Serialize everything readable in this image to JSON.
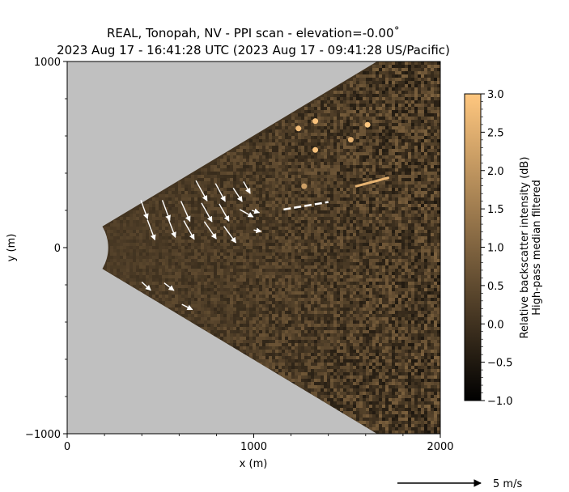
{
  "chart_data": {
    "type": "heatmap",
    "title_line1": "REAL, Tonopah, NV - PPI scan - elevation=-0.00˚",
    "title_line2": "2023 Aug 17 - 16:41:28 UTC (2023 Aug 17 - 09:41:28 US/Pacific)",
    "xlabel": "x (m)",
    "ylabel": "y (m)",
    "xlim": [
      0,
      2000
    ],
    "ylim": [
      -1000,
      1000
    ],
    "x_ticks": [
      0,
      1000,
      2000
    ],
    "y_ticks": [
      -1000,
      0,
      1000
    ],
    "x_tick_labels": [
      "0",
      "1000",
      "2000"
    ],
    "y_tick_labels": [
      "−1000",
      "0",
      "1000"
    ],
    "background_color": "#c0c0c0",
    "scan_sector": {
      "range_min": 220,
      "range_max": 2300,
      "azimuth_half_width_deg": 31
    },
    "colorbar": {
      "label_line1": "Relative backscatter intensity (dB)",
      "label_line2": "High-pass median filtered",
      "vmin": -1.0,
      "vmax": 3.0,
      "ticks": [
        -1.0,
        -0.5,
        0.0,
        0.5,
        1.0,
        1.5,
        2.0,
        2.5,
        3.0
      ],
      "tick_labels": [
        "−1.0",
        "−0.5",
        "0.0",
        "0.5",
        "1.0",
        "1.5",
        "2.0",
        "2.5",
        "3.0"
      ],
      "colormap": "copper",
      "colors": [
        "#000000",
        "#ffc77f"
      ]
    },
    "bright_features": [
      {
        "x": 1240,
        "y": 640,
        "value": 2.8
      },
      {
        "x": 1330,
        "y": 680,
        "value": 2.9
      },
      {
        "x": 1610,
        "y": 660,
        "value": 3.0
      },
      {
        "x": 1520,
        "y": 580,
        "value": 2.6
      },
      {
        "x": 1330,
        "y": 525,
        "value": 2.9
      },
      {
        "x": 1270,
        "y": 330,
        "value": 2.2
      }
    ],
    "bright_streak": {
      "x_start": 1550,
      "y_start": 330,
      "x_end": 1720,
      "y_end": 375,
      "value": 2.6
    },
    "dashed_segment": {
      "x_start": 1160,
      "y_start": 205,
      "x_end": 1400,
      "y_end": 245,
      "color": "#ffffff"
    },
    "wind_vectors": {
      "color": "#ffffff",
      "reference_label": "5 m/s",
      "items": [
        {
          "x": 395,
          "y": 255,
          "u": 0.9,
          "v": -2.5
        },
        {
          "x": 430,
          "y": 150,
          "u": 1.0,
          "v": -2.7
        },
        {
          "x": 510,
          "y": 255,
          "u": 1.0,
          "v": -2.7
        },
        {
          "x": 540,
          "y": 160,
          "u": 1.0,
          "v": -2.6
        },
        {
          "x": 610,
          "y": 250,
          "u": 1.2,
          "v": -2.7
        },
        {
          "x": 625,
          "y": 145,
          "u": 1.4,
          "v": -2.5
        },
        {
          "x": 690,
          "y": 360,
          "u": 1.5,
          "v": -2.7
        },
        {
          "x": 720,
          "y": 240,
          "u": 1.4,
          "v": -2.5
        },
        {
          "x": 735,
          "y": 140,
          "u": 1.6,
          "v": -2.3
        },
        {
          "x": 795,
          "y": 345,
          "u": 1.3,
          "v": -2.4
        },
        {
          "x": 815,
          "y": 235,
          "u": 1.3,
          "v": -2.3
        },
        {
          "x": 840,
          "y": 115,
          "u": 1.6,
          "v": -2.2
        },
        {
          "x": 890,
          "y": 320,
          "u": 1.2,
          "v": -1.8
        },
        {
          "x": 925,
          "y": 205,
          "u": 1.8,
          "v": -1.0
        },
        {
          "x": 945,
          "y": 355,
          "u": 0.9,
          "v": -1.6
        },
        {
          "x": 990,
          "y": 200,
          "u": 1.0,
          "v": -0.3
        },
        {
          "x": 1000,
          "y": 95,
          "u": 1.0,
          "v": -0.2
        },
        {
          "x": 400,
          "y": -185,
          "u": 1.2,
          "v": -1.1
        },
        {
          "x": 520,
          "y": -190,
          "u": 1.3,
          "v": -1.0
        },
        {
          "x": 615,
          "y": -305,
          "u": 1.4,
          "v": -0.7
        }
      ]
    }
  }
}
